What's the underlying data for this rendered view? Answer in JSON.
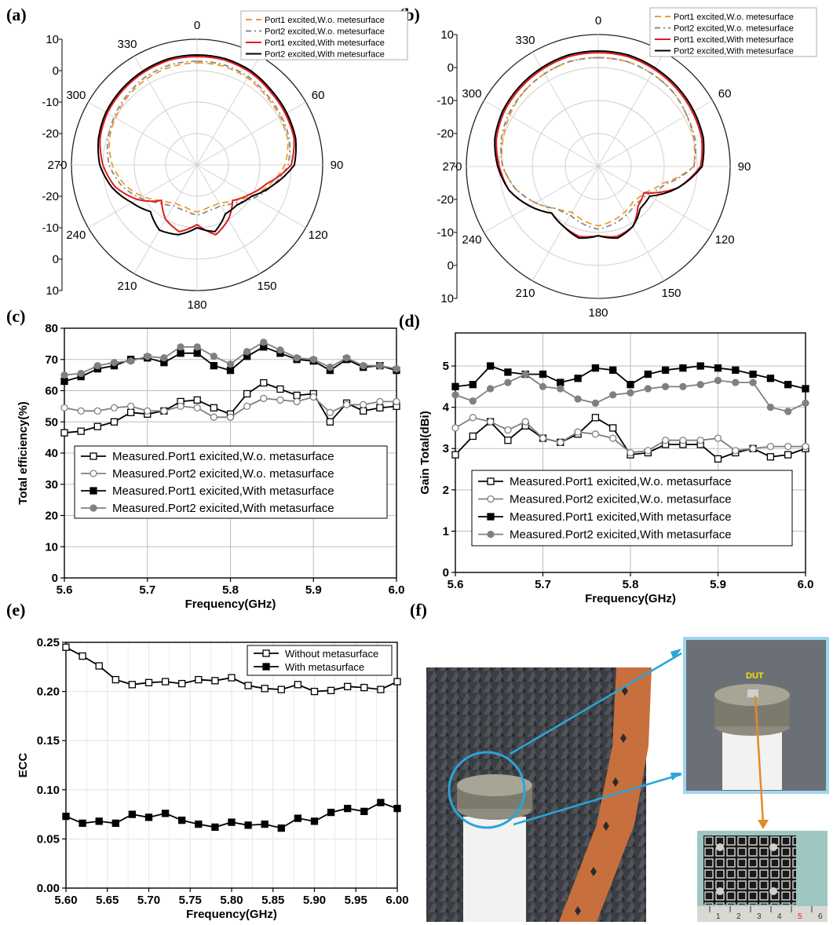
{
  "panel_labels": [
    "(a)",
    "(b)",
    "(c)",
    "(d)",
    "(e)",
    "(f)"
  ],
  "chart_data": [
    {
      "id": "a",
      "type": "polar",
      "angle_ticks": [
        "0",
        "30",
        "60",
        "90",
        "120",
        "150",
        "180",
        "210",
        "240",
        "270",
        "300",
        "330"
      ],
      "radial_range": [
        -30,
        10
      ],
      "radial_ticks_upper": [
        "10",
        "0",
        "-10",
        "-20"
      ],
      "radial_ticks_lower": [
        "-20",
        "-10",
        "0",
        "10"
      ],
      "legend": [
        "Port1 excited,W.o. metesurface",
        "Port2 excited,W.o. metesurface",
        "Port1 excited,With metesurface",
        "Port2 excited,With metesurface"
      ],
      "colors": [
        "#f29a2e",
        "#888888",
        "#e31a1c",
        "#000000"
      ],
      "angles": [
        0,
        15,
        30,
        45,
        60,
        75,
        90,
        105,
        120,
        135,
        150,
        165,
        180,
        195,
        210,
        225,
        240,
        255,
        270,
        285,
        300,
        315,
        330,
        345
      ],
      "series": [
        {
          "name": "Port1 excited,W.o. metesurface",
          "values": [
            2.5,
            2.5,
            2,
            1,
            0.5,
            0,
            -2,
            -6,
            -10,
            -14,
            -16,
            -16,
            -15,
            -16,
            -16,
            -14,
            -10,
            -6,
            -3,
            -1,
            0,
            1,
            1.8,
            2.3
          ]
        },
        {
          "name": "Port2 excited,W.o. metesurface",
          "values": [
            3,
            3,
            2.5,
            1.5,
            1,
            0.5,
            -1,
            -5,
            -9,
            -13,
            -15,
            -15,
            -14,
            -15,
            -15,
            -13,
            -9,
            -5,
            -2,
            -0.5,
            0.5,
            1.5,
            2.5,
            3
          ]
        },
        {
          "name": "Port1 excited,With metesurface",
          "values": [
            4.5,
            4.5,
            4,
            3,
            2.5,
            2,
            0,
            -7,
            -11,
            -14,
            -10,
            -7,
            -11,
            -8,
            -10,
            -14,
            -8,
            -3,
            0,
            2,
            3,
            3.5,
            4,
            4.5
          ]
        },
        {
          "name": "Port2 excited,With metesurface",
          "values": [
            5,
            5,
            4.5,
            3.5,
            3,
            2.5,
            1,
            -5,
            -10,
            -12,
            -12,
            -8,
            -10,
            -7,
            -6,
            -9,
            -6,
            -2,
            1,
            2.5,
            3.5,
            4,
            4.5,
            5
          ]
        }
      ]
    },
    {
      "id": "b",
      "type": "polar",
      "angle_ticks": [
        "0",
        "30",
        "60",
        "90",
        "120",
        "150",
        "180",
        "210",
        "240",
        "270",
        "300",
        "330"
      ],
      "radial_range": [
        -30,
        10
      ],
      "radial_ticks_upper": [
        "10",
        "0",
        "-10",
        "-20"
      ],
      "radial_ticks_lower": [
        "-20",
        "-10",
        "0",
        "10"
      ],
      "legend": [
        "Port1 excited,W.o. metesurface",
        "Port2 excited,W.o. metesurface",
        "Port1 excited,With metesurface",
        "Port2 excited,With metesurface"
      ],
      "colors": [
        "#f29a2e",
        "#888888",
        "#e31a1c",
        "#000000"
      ],
      "angles": [
        0,
        15,
        30,
        45,
        60,
        75,
        90,
        105,
        120,
        135,
        150,
        165,
        180,
        195,
        210,
        225,
        240,
        255,
        270,
        285,
        300,
        315,
        330,
        345
      ],
      "series": [
        {
          "name": "Port1 excited,W.o. metesurface",
          "values": [
            3,
            3,
            2.5,
            2,
            1,
            0,
            -1,
            -10,
            -14,
            -15,
            -14,
            -13,
            -12,
            -13,
            -14,
            -12,
            -8,
            -4,
            -1,
            0,
            1,
            2,
            2.5,
            3
          ]
        },
        {
          "name": "Port2 excited,W.o. metesurface",
          "values": [
            3,
            3,
            2.5,
            2,
            1,
            0.5,
            -1,
            -9,
            -13,
            -14,
            -13,
            -12,
            -11,
            -12,
            -13,
            -12,
            -8,
            -4,
            -1,
            0.5,
            1.5,
            2,
            2.5,
            3
          ]
        },
        {
          "name": "Port1 excited,With metesurface",
          "values": [
            4.5,
            4.5,
            4,
            3.5,
            3,
            2.5,
            1,
            -5,
            -14,
            -13,
            -9,
            -8,
            -9,
            -8,
            -9,
            -10,
            -6,
            -2,
            0,
            2,
            3,
            3.5,
            4,
            4.5
          ]
        },
        {
          "name": "Port2 excited,With metesurface",
          "values": [
            5,
            5,
            4.5,
            4,
            3.5,
            3,
            1.5,
            -5,
            -12,
            -12,
            -9,
            -7.5,
            -9,
            -7.5,
            -9,
            -10,
            -6,
            -2,
            0.5,
            2.5,
            3.5,
            4,
            4.5,
            5
          ]
        }
      ]
    },
    {
      "id": "c",
      "type": "line",
      "xlabel": "Frequency(GHz)",
      "ylabel": "Total efficiency(%)",
      "xlim": [
        5.6,
        6.0
      ],
      "ylim": [
        0,
        80
      ],
      "xticks": [
        "5.6",
        "5.7",
        "5.8",
        "5.9",
        "6.0"
      ],
      "yticks": [
        "0",
        "10",
        "20",
        "30",
        "40",
        "50",
        "60",
        "70",
        "80"
      ],
      "x": [
        5.6,
        5.62,
        5.64,
        5.66,
        5.68,
        5.7,
        5.72,
        5.74,
        5.76,
        5.78,
        5.8,
        5.82,
        5.84,
        5.86,
        5.88,
        5.9,
        5.92,
        5.94,
        5.96,
        5.98,
        6.0
      ],
      "series": [
        {
          "name": "Measured.Port1 exicited,W.o. metasurface",
          "marker": "open-square",
          "color": "#000000",
          "values": [
            46.5,
            47,
            48.5,
            50,
            53,
            52.5,
            53.5,
            56.5,
            57,
            54.5,
            52.5,
            59,
            62.5,
            60.5,
            58.5,
            59,
            50,
            56,
            53.5,
            54.5,
            55
          ]
        },
        {
          "name": "Measured.Port2 exicited,W.o. metasurface",
          "marker": "open-circle",
          "color": "#808080",
          "values": [
            54.5,
            53.5,
            53.5,
            54.5,
            55,
            53.5,
            53.5,
            55,
            54.5,
            51.5,
            51.5,
            55,
            57.5,
            57,
            56.5,
            58,
            53,
            55.5,
            55.5,
            56.5,
            56.5
          ]
        },
        {
          "name": "Measured.Port1 exicited,With metasurface",
          "marker": "filled-square",
          "color": "#000000",
          "values": [
            63,
            64.5,
            67,
            68,
            70,
            70.5,
            69,
            72,
            72,
            68,
            66.5,
            71,
            74,
            72,
            70,
            69.5,
            66.5,
            70,
            67.5,
            68,
            66.5
          ]
        },
        {
          "name": "Measured.Port2 exicited,With metasurface",
          "marker": "filled-circle",
          "color": "#808080",
          "values": [
            65,
            65.5,
            68,
            69,
            69.5,
            71,
            70.5,
            74,
            74,
            71,
            68.5,
            72.5,
            75.5,
            73,
            70.5,
            70,
            67.5,
            70.5,
            68,
            68,
            67
          ]
        }
      ]
    },
    {
      "id": "d",
      "type": "line",
      "xlabel": "Frequency(GHz)",
      "ylabel": "Gain Total(dBi)",
      "xlim": [
        5.6,
        6.0
      ],
      "ylim": [
        0,
        5.8
      ],
      "xticks": [
        "5.6",
        "5.7",
        "5.8",
        "5.9",
        "6.0"
      ],
      "yticks": [
        "0",
        "1",
        "2",
        "3",
        "4",
        "5"
      ],
      "x": [
        5.6,
        5.62,
        5.64,
        5.66,
        5.68,
        5.7,
        5.72,
        5.74,
        5.76,
        5.78,
        5.8,
        5.82,
        5.84,
        5.86,
        5.88,
        5.9,
        5.92,
        5.94,
        5.96,
        5.98,
        6.0
      ],
      "series": [
        {
          "name": "Measured.Port1 exicited,W.o. metasurface",
          "marker": "open-square",
          "color": "#000000",
          "values": [
            2.85,
            3.3,
            3.65,
            3.2,
            3.55,
            3.25,
            3.15,
            3.35,
            3.75,
            3.5,
            2.85,
            2.9,
            3.1,
            3.1,
            3.1,
            2.75,
            2.9,
            3.0,
            2.8,
            2.85,
            3.0
          ]
        },
        {
          "name": "Measured.Port2 exicited,W.o. metasurface",
          "marker": "open-circle",
          "color": "#808080",
          "values": [
            3.5,
            3.75,
            3.65,
            3.45,
            3.65,
            3.25,
            3.15,
            3.4,
            3.35,
            3.25,
            2.9,
            2.95,
            3.2,
            3.2,
            3.2,
            3.25,
            2.95,
            3.0,
            3.05,
            3.05,
            3.05
          ]
        },
        {
          "name": "Measured.Port1 exicited,With metasurface",
          "marker": "filled-square",
          "color": "#000000",
          "values": [
            4.5,
            4.55,
            5.0,
            4.85,
            4.8,
            4.8,
            4.6,
            4.7,
            4.95,
            4.9,
            4.55,
            4.8,
            4.9,
            4.95,
            5.0,
            4.95,
            4.9,
            4.8,
            4.7,
            4.55,
            4.45
          ]
        },
        {
          "name": "Measured.Port2 exicited,With metasurface",
          "marker": "filled-circle",
          "color": "#808080",
          "values": [
            4.3,
            4.15,
            4.45,
            4.6,
            4.8,
            4.5,
            4.45,
            4.2,
            4.1,
            4.3,
            4.35,
            4.45,
            4.5,
            4.5,
            4.55,
            4.65,
            4.6,
            4.6,
            4.0,
            3.9,
            4.1
          ]
        }
      ]
    },
    {
      "id": "e",
      "type": "line",
      "xlabel": "Frequency(GHz)",
      "ylabel": "ECC",
      "xlim": [
        5.6,
        6.0
      ],
      "ylim": [
        0,
        0.25
      ],
      "xticks": [
        "5.60",
        "5.65",
        "5.70",
        "5.75",
        "5.80",
        "5.85",
        "5.90",
        "5.95",
        "6.00"
      ],
      "yticks": [
        "0.00",
        "0.05",
        "0.10",
        "0.15",
        "0.20",
        "0.25"
      ],
      "x": [
        5.6,
        5.62,
        5.64,
        5.66,
        5.68,
        5.7,
        5.72,
        5.74,
        5.76,
        5.78,
        5.8,
        5.82,
        5.84,
        5.86,
        5.88,
        5.9,
        5.92,
        5.94,
        5.96,
        5.98,
        6.0
      ],
      "series": [
        {
          "name": "Without metasurface",
          "marker": "open-square",
          "color": "#000000",
          "values": [
            0.245,
            0.236,
            0.226,
            0.212,
            0.207,
            0.209,
            0.21,
            0.208,
            0.212,
            0.211,
            0.214,
            0.206,
            0.203,
            0.202,
            0.207,
            0.2,
            0.201,
            0.205,
            0.204,
            0.202,
            0.21
          ]
        },
        {
          "name": "With metasurface",
          "marker": "filled-square",
          "color": "#000000",
          "values": [
            0.073,
            0.066,
            0.068,
            0.066,
            0.075,
            0.072,
            0.076,
            0.069,
            0.065,
            0.062,
            0.067,
            0.064,
            0.065,
            0.061,
            0.071,
            0.068,
            0.077,
            0.081,
            0.078,
            0.087,
            0.081
          ]
        }
      ]
    }
  ],
  "photo": {
    "dut_label": "DUT",
    "ruler_marks": [
      "1",
      "2",
      "3",
      "4",
      "5",
      "6"
    ]
  }
}
